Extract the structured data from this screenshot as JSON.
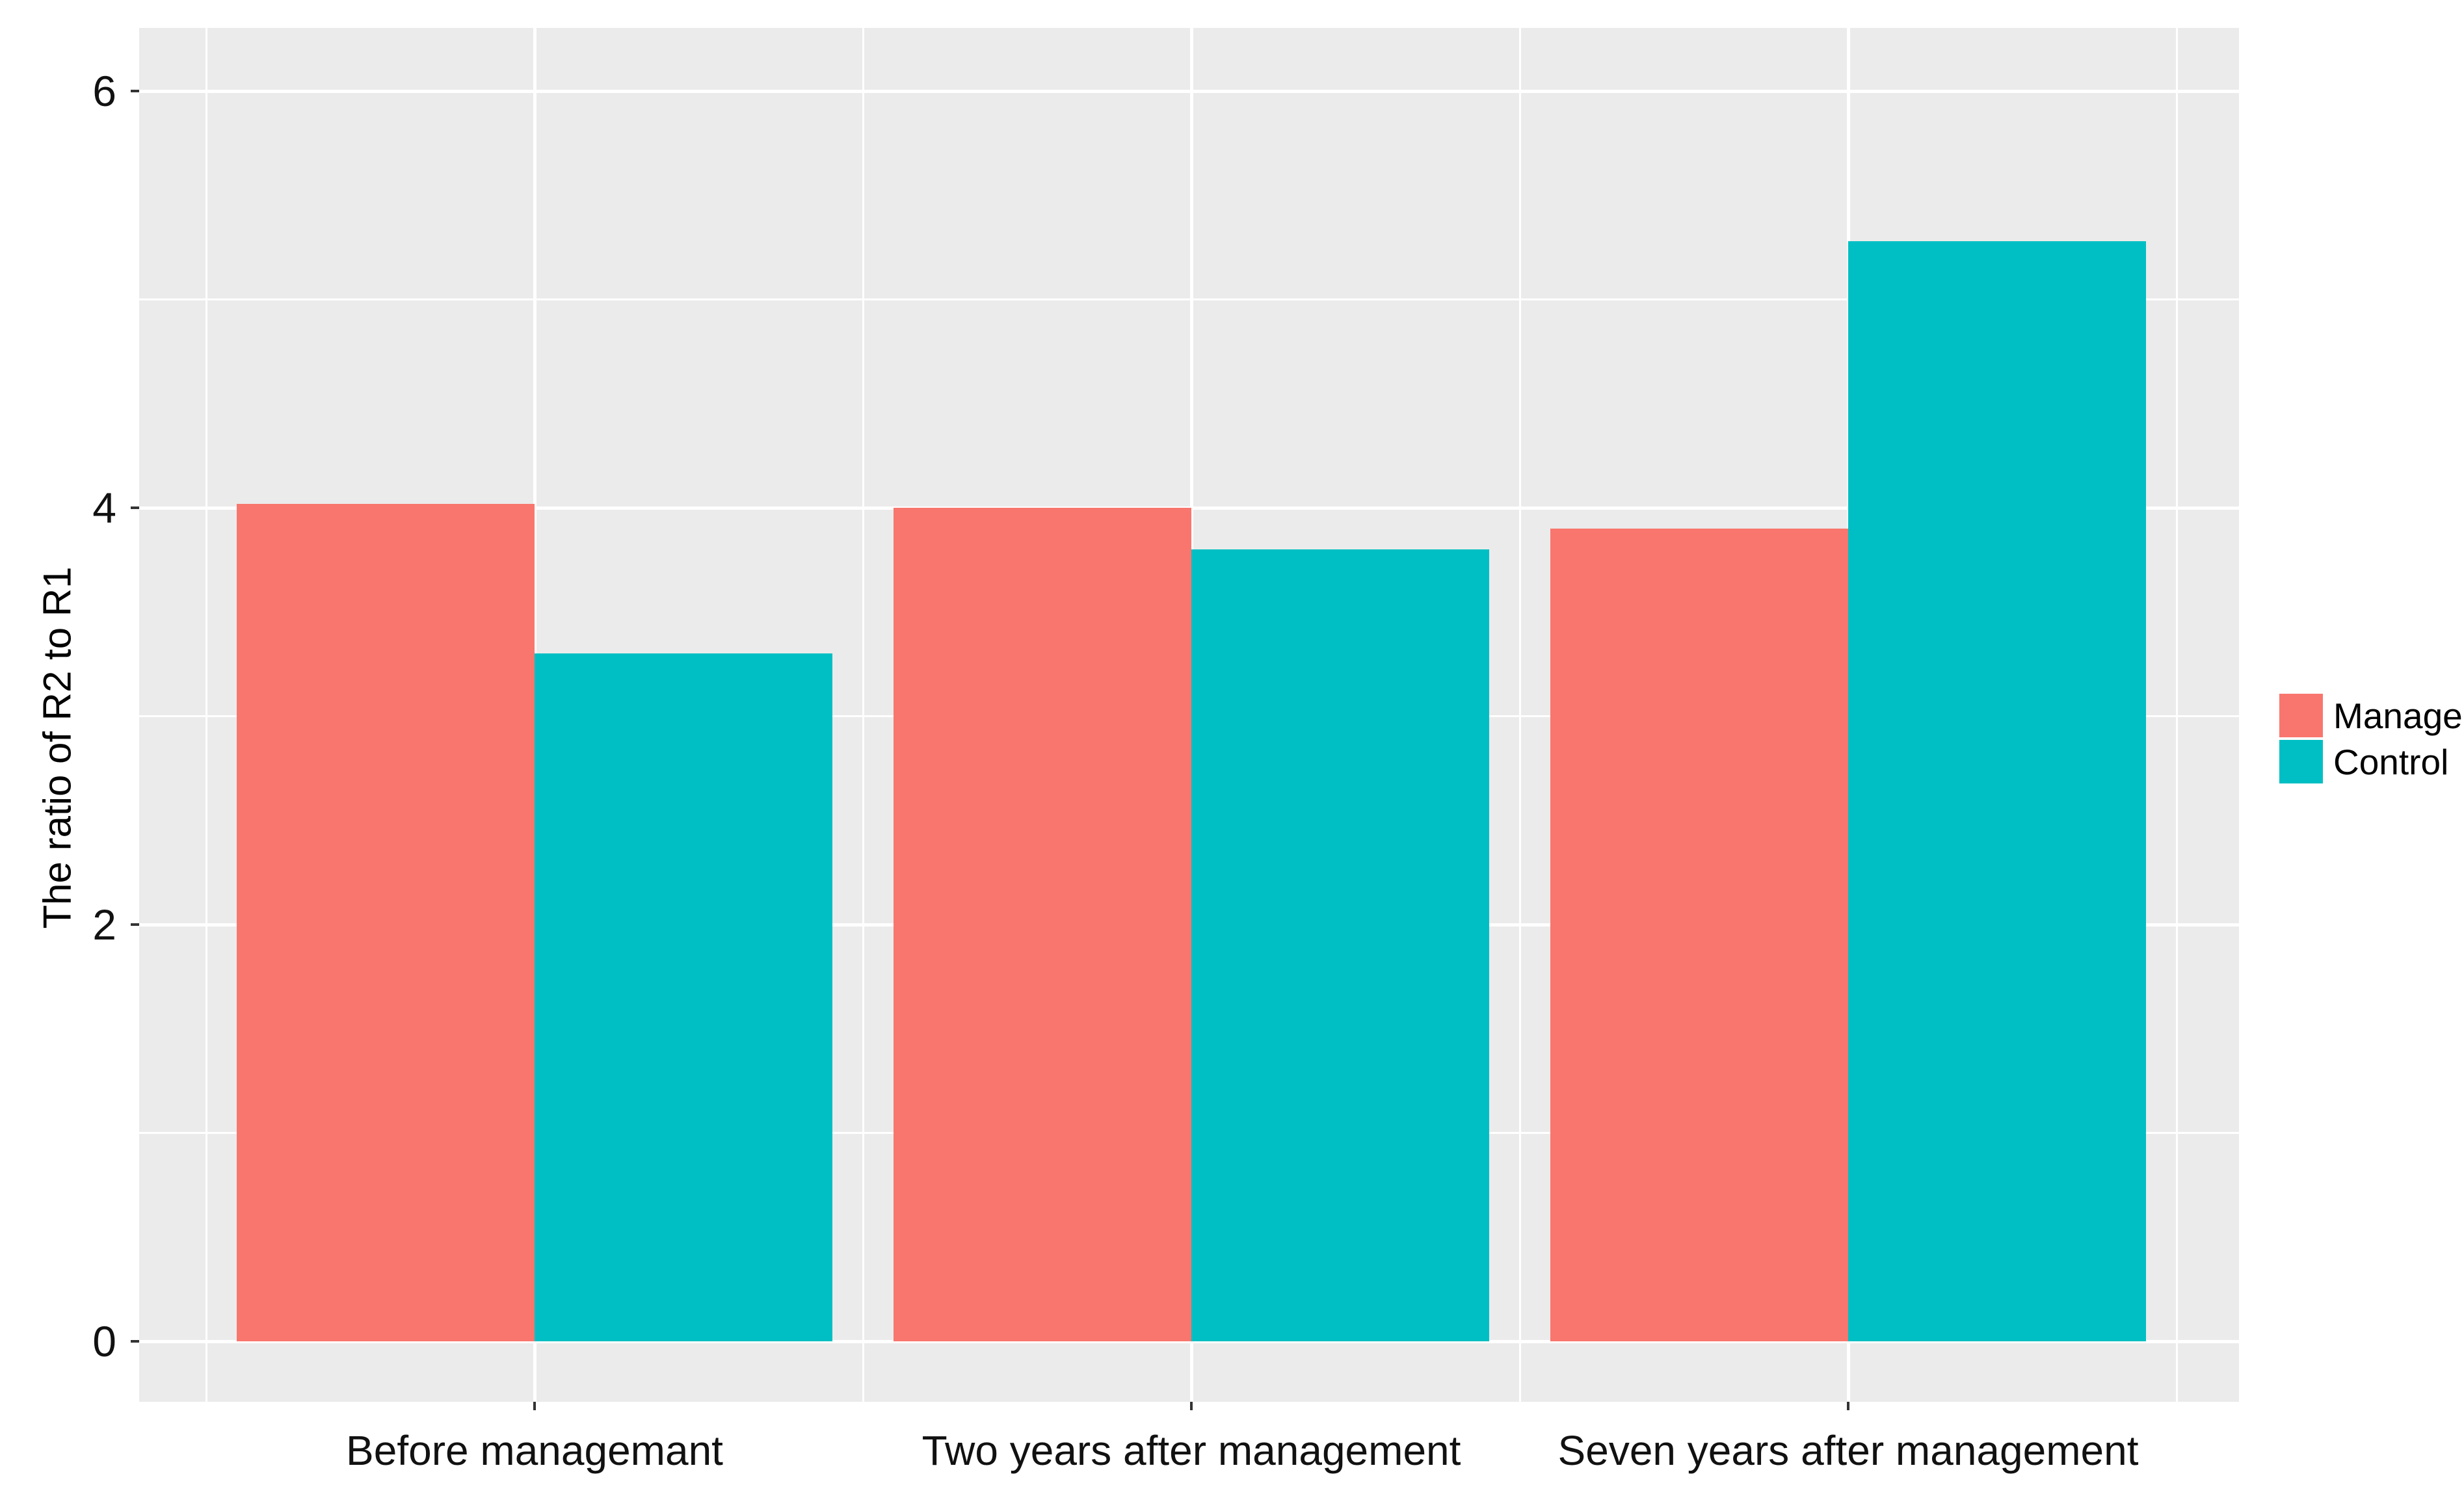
{
  "figure": {
    "background": "#FFFFFF",
    "panel_background": "#EBEBEB",
    "gridline_color": "#FFFFFF",
    "tick_color": "#333333",
    "text_color": "#111111"
  },
  "chart_data": {
    "type": "bar",
    "grouped": true,
    "title": "",
    "categories": [
      "Before managemant",
      "Two years after management",
      "Seven years after management"
    ],
    "series": [
      {
        "name": "Manage",
        "color": "#F8766D",
        "values": [
          4.02,
          4.0,
          3.9
        ]
      },
      {
        "name": "Control",
        "color": "#00BFC4",
        "values": [
          3.3,
          3.8,
          5.28
        ]
      }
    ],
    "xlabel": "",
    "ylabel": "The ratio of R2 to R1",
    "yticks": [
      0,
      2,
      4,
      6
    ],
    "ylim": [
      -0.29,
      6.3
    ],
    "grid": "major-and-minor-white-on-grey",
    "legend_position": "right",
    "legend_items": [
      "Manage",
      "Control"
    ]
  }
}
